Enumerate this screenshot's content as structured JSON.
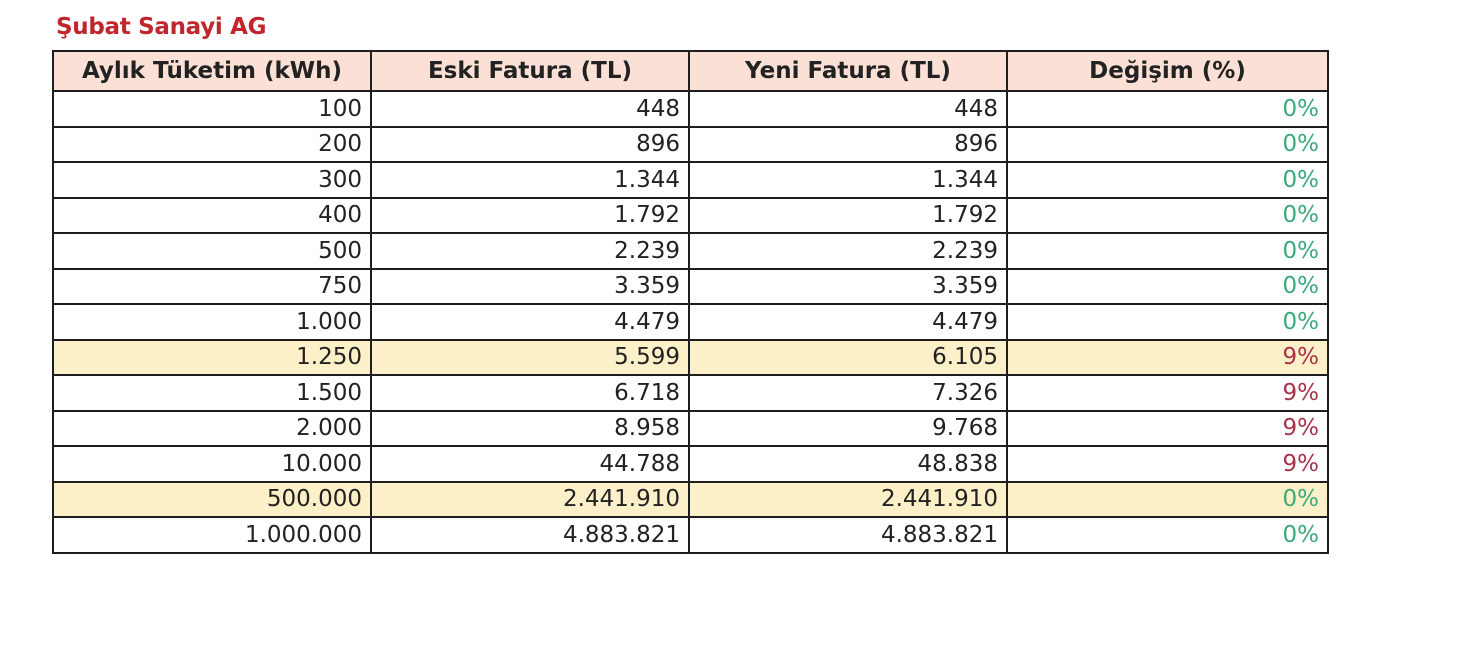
{
  "title": "Şubat Sanayi AG",
  "headers": [
    "Aylık Tüketim (kWh)",
    "Eski Fatura (TL)",
    "Yeni Fatura (TL)",
    "Değişim (%)"
  ],
  "colors": {
    "title": "#c0272d",
    "header_bg": "#fbe0d6",
    "highlight_bg": "#fcf0c8",
    "zero_change": "#3aaa7a",
    "positive_change": "#a8324a"
  },
  "rows": [
    {
      "consumption": "100",
      "old_bill": "448",
      "new_bill": "448",
      "change": "0%",
      "highlight": false
    },
    {
      "consumption": "200",
      "old_bill": "896",
      "new_bill": "896",
      "change": "0%",
      "highlight": false
    },
    {
      "consumption": "300",
      "old_bill": "1.344",
      "new_bill": "1.344",
      "change": "0%",
      "highlight": false
    },
    {
      "consumption": "400",
      "old_bill": "1.792",
      "new_bill": "1.792",
      "change": "0%",
      "highlight": false
    },
    {
      "consumption": "500",
      "old_bill": "2.239",
      "new_bill": "2.239",
      "change": "0%",
      "highlight": false
    },
    {
      "consumption": "750",
      "old_bill": "3.359",
      "new_bill": "3.359",
      "change": "0%",
      "highlight": false
    },
    {
      "consumption": "1.000",
      "old_bill": "4.479",
      "new_bill": "4.479",
      "change": "0%",
      "highlight": false
    },
    {
      "consumption": "1.250",
      "old_bill": "5.599",
      "new_bill": "6.105",
      "change": "9%",
      "highlight": true
    },
    {
      "consumption": "1.500",
      "old_bill": "6.718",
      "new_bill": "7.326",
      "change": "9%",
      "highlight": false
    },
    {
      "consumption": "2.000",
      "old_bill": "8.958",
      "new_bill": "9.768",
      "change": "9%",
      "highlight": false
    },
    {
      "consumption": "10.000",
      "old_bill": "44.788",
      "new_bill": "48.838",
      "change": "9%",
      "highlight": false
    },
    {
      "consumption": "500.000",
      "old_bill": "2.441.910",
      "new_bill": "2.441.910",
      "change": "0%",
      "highlight": true
    },
    {
      "consumption": "1.000.000",
      "old_bill": "4.883.821",
      "new_bill": "4.883.821",
      "change": "0%",
      "highlight": false
    }
  ]
}
